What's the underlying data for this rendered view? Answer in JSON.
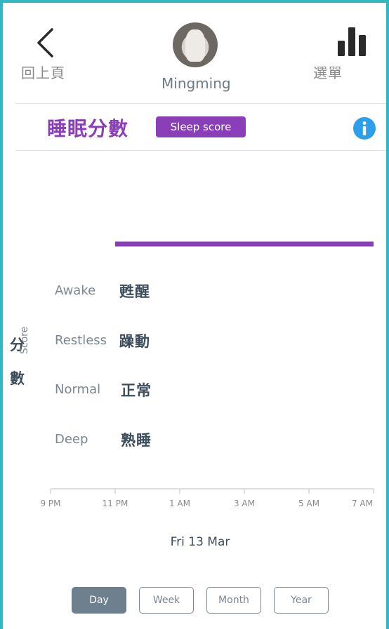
{
  "header": {
    "back_label": "回上頁",
    "user_name": "Mingming",
    "menu_label": "選單"
  },
  "section": {
    "title": "睡眠分數",
    "badge": "Sleep score"
  },
  "axis": {
    "ylabel_zh_1": "分",
    "ylabel_zh_2": "數",
    "ylabel_en": "Score"
  },
  "categories": [
    {
      "en": "Awake",
      "zh": "甦醒"
    },
    {
      "en": "Restless",
      "zh": "躁動"
    },
    {
      "en": "Normal",
      "zh": "正常"
    },
    {
      "en": "Deep",
      "zh": "熟睡"
    }
  ],
  "chart_data": {
    "type": "line",
    "x_ticks": [
      "9 PM",
      "11 PM",
      "1 AM",
      "3 AM",
      "5 AM",
      "7 AM"
    ],
    "series": [
      {
        "segments": [
          {
            "start": "11 PM",
            "end": "7 AM",
            "level": "above Awake"
          }
        ],
        "color": "#8a3fb8"
      }
    ],
    "xlabel": "Fri 13 Mar",
    "ylabel": "Score",
    "grid": false
  },
  "date_label": "Fri 13 Mar",
  "range_buttons": [
    {
      "label": "Day",
      "active": true
    },
    {
      "label": "Week",
      "active": false
    },
    {
      "label": "Month",
      "active": false
    },
    {
      "label": "Year",
      "active": false
    }
  ],
  "colors": {
    "accent": "#8a3fb8",
    "frame": "#2fb7c3",
    "info": "#2d9ee8"
  }
}
